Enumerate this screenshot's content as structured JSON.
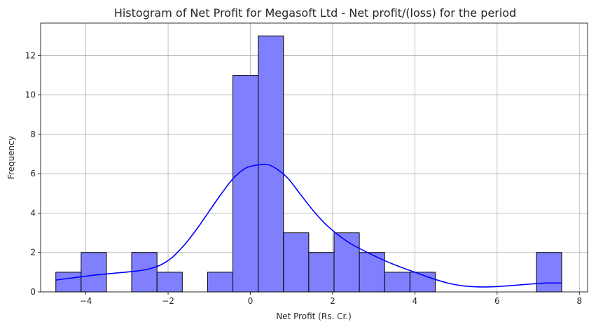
{
  "chart_data": {
    "type": "bar",
    "title": "Histogram of Net Profit for Megasoft Ltd - Net profit/(loss) for the period",
    "xlabel": "Net Profit (Rs. Cr.)",
    "ylabel": "Frequency",
    "xlim": [
      -5.1,
      8.2
    ],
    "ylim": [
      0,
      13.65
    ],
    "xticks": [
      -4,
      -2,
      0,
      2,
      4,
      6,
      8
    ],
    "xtick_labels": [
      "−4",
      "−2",
      "0",
      "2",
      "4",
      "6",
      "8"
    ],
    "yticks": [
      0,
      2,
      4,
      6,
      8,
      10,
      12
    ],
    "ytick_labels": [
      "0",
      "2",
      "4",
      "6",
      "8",
      "10",
      "12"
    ],
    "grid": true,
    "bin_edges": [
      -4.73,
      -4.115,
      -3.5,
      -2.885,
      -2.27,
      -1.655,
      -1.04,
      -0.425,
      0.19,
      0.805,
      1.42,
      2.035,
      2.65,
      3.265,
      3.88,
      4.495,
      5.11,
      5.725,
      6.34,
      6.955,
      7.57
    ],
    "counts": [
      1,
      2,
      0,
      2,
      1,
      0,
      1,
      11,
      13,
      3,
      2,
      3,
      2,
      1,
      1,
      0,
      0,
      0,
      0,
      2
    ],
    "bar_color": "#8080ff",
    "bar_edge_color": "#000000",
    "kde": {
      "color": "#0000ff",
      "x": [
        -4.73,
        -4.3,
        -3.8,
        -3.3,
        -2.8,
        -2.5,
        -2.2,
        -1.9,
        -1.6,
        -1.3,
        -1.0,
        -0.7,
        -0.4,
        -0.1,
        0.2,
        0.4,
        0.6,
        0.9,
        1.2,
        1.5,
        1.8,
        2.1,
        2.4,
        2.8,
        3.2,
        3.6,
        4.0,
        4.4,
        4.8,
        5.2,
        5.7,
        6.2,
        6.7,
        7.2,
        7.57
      ],
      "y": [
        0.6,
        0.72,
        0.85,
        0.95,
        1.05,
        1.15,
        1.35,
        1.75,
        2.4,
        3.2,
        4.1,
        5.0,
        5.8,
        6.3,
        6.45,
        6.47,
        6.3,
        5.8,
        5.0,
        4.2,
        3.5,
        2.95,
        2.5,
        2.05,
        1.65,
        1.3,
        1.0,
        0.7,
        0.45,
        0.3,
        0.25,
        0.3,
        0.38,
        0.45,
        0.45
      ]
    }
  }
}
